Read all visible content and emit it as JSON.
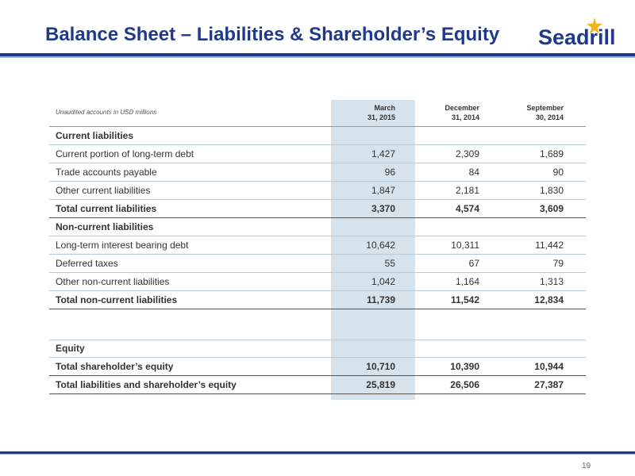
{
  "header": {
    "title": "Balance Sheet – Liabilities & Shareholder’s Equity",
    "logo_text": "Seadrill",
    "accent_color": "#1f3a8a",
    "logo_icon": "star-icon"
  },
  "table": {
    "note": "Unaudited accounts in USD millions",
    "columns": [
      {
        "line1": "March",
        "line2": "31, 2015"
      },
      {
        "line1": "December",
        "line2": "31, 2014"
      },
      {
        "line1": "September",
        "line2": "30, 2014"
      }
    ],
    "rows": [
      {
        "label": "Current liabilities",
        "values": [
          "",
          "",
          ""
        ]
      },
      {
        "label": "Current portion of long-term debt",
        "values": [
          "1,427",
          "2,309",
          "1,689"
        ]
      },
      {
        "label": "Trade accounts payable",
        "values": [
          "96",
          "84",
          "90"
        ]
      },
      {
        "label": "Other current liabilities",
        "values": [
          "1,847",
          "2,181",
          "1,830"
        ]
      },
      {
        "label": "Total current liabilities",
        "values": [
          "3,370",
          "4,574",
          "3,609"
        ]
      },
      {
        "label": "Non-current liabilities",
        "values": [
          "",
          "",
          ""
        ]
      },
      {
        "label": "Long-term interest bearing debt",
        "values": [
          "10,642",
          "10,311",
          "11,442"
        ]
      },
      {
        "label": "Deferred taxes",
        "values": [
          "55",
          "67",
          "79"
        ]
      },
      {
        "label": "Other non-current liabilities",
        "values": [
          "1,042",
          "1,164",
          "1,313"
        ]
      },
      {
        "label": "Total non-current liabilities",
        "values": [
          "11,739",
          "11,542",
          "12,834"
        ]
      },
      {
        "label": "Equity",
        "values": [
          "",
          "",
          ""
        ]
      },
      {
        "label": "Total shareholder’s equity",
        "values": [
          "10,710",
          "10,390",
          "10,944"
        ]
      },
      {
        "label": "Total liabilities and shareholder’s equity",
        "values": [
          "25,819",
          "26,506",
          "27,387"
        ]
      }
    ]
  },
  "footer": {
    "page_number": "19"
  }
}
